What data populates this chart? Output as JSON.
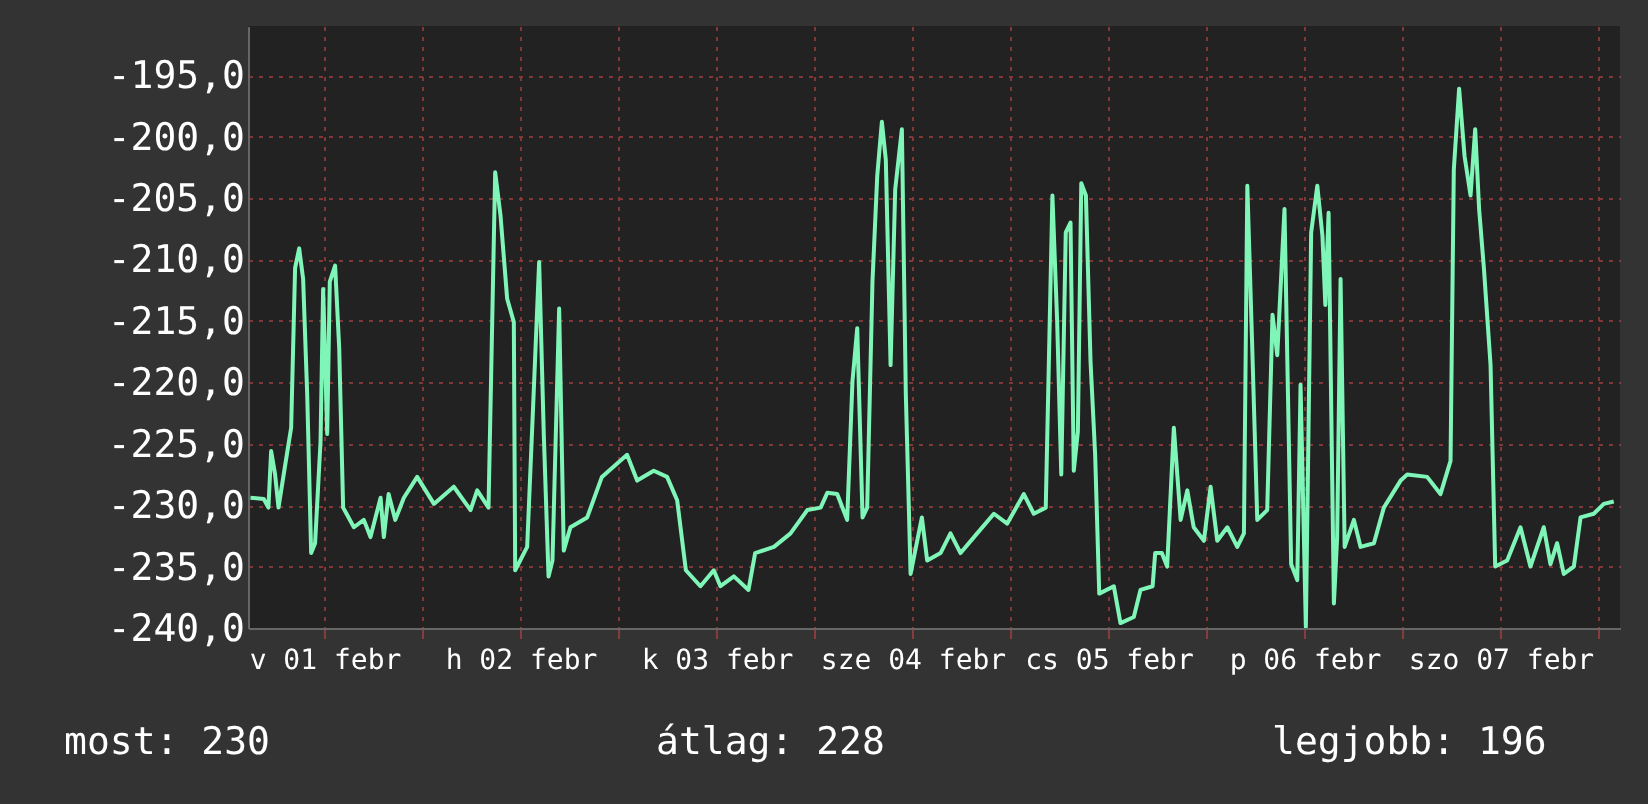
{
  "chart_data": {
    "type": "line",
    "x": [
      "--02-01T02:56",
      "--02-01T04:34",
      "--02-01T05:08",
      "--02-01T05:28",
      "--02-01T05:57",
      "--02-01T06:22",
      "--02-01T07:16",
      "--02-01T07:55",
      "--02-01T08:24",
      "--02-01T08:54",
      "--02-01T09:23",
      "--02-01T09:53",
      "--02-01T10:22",
      "--02-01T10:51",
      "--02-01T11:31",
      "--02-01T11:50",
      "--02-01T12:20",
      "--02-01T12:39",
      "--02-01T13:18",
      "--02-01T13:48",
      "--02-01T14:17",
      "--02-01T15:36",
      "--02-01T16:49",
      "--02-01T17:38",
      "--02-01T18:52",
      "--02-01T19:16",
      "--02-01T19:51",
      "--02-01T20:40",
      "--02-01T21:43",
      "--02-01T23:21",
      "--02-02T01:24",
      "--02-02T03:50",
      "--02-02T05:53",
      "--02-02T06:42",
      "--02-02T08:05",
      "--02-02T08:54",
      "--02-02T09:33",
      "--02-02T10:22",
      "--02-02T11:11",
      "--02-02T11:21",
      "--02-02T12:49",
      "--02-02T13:28",
      "--02-02T14:17",
      "--02-02T14:51",
      "--02-02T15:26",
      "--02-02T15:55",
      "--02-02T16:44",
      "--02-02T17:18",
      "--02-02T18:07",
      "--02-02T20:10",
      "--02-02T21:58",
      "--02-03T01:03",
      "--02-03T02:17",
      "--02-03T04:19",
      "--02-03T05:57",
      "--02-03T07:11",
      "--02-03T08:15",
      "--02-03T10:02",
      "--02-03T11:40",
      "--02-03T12:29",
      "--02-03T14:08",
      "--02-03T15:55",
      "--02-03T16:44",
      "--02-03T19:02",
      "--02-03T21:04",
      "--02-03T23:07",
      "--02-04T00:45",
      "--02-04T01:34",
      "--02-04T02:47",
      "--02-04T04:00",
      "--02-04T04:39",
      "--02-04T05:14",
      "--02-04T05:53",
      "--02-04T06:27",
      "--02-04T07:06",
      "--02-04T07:41",
      "--02-04T08:15",
      "--02-04T08:44",
      "--02-04T09:19",
      "--02-04T09:53",
      "--02-04T10:42",
      "--02-04T11:11",
      "--02-04T11:46",
      "--02-04T13:09",
      "--02-04T13:48",
      "--02-04T15:26",
      "--02-04T16:39",
      "--02-04T17:53",
      "--02-04T19:55",
      "--02-04T21:58",
      "--02-04T23:36",
      "--02-05T01:38",
      "--02-05T02:51",
      "--02-05T04:19",
      "--02-05T05:08",
      "--02-05T05:43",
      "--02-05T06:13",
      "--02-05T06:46",
      "--02-05T07:21",
      "--02-05T07:45",
      "--02-05T08:15",
      "--02-05T08:40",
      "--02-05T09:14",
      "--02-05T09:48",
      "--02-05T10:22",
      "--02-05T10:52",
      "--02-05T12:39",
      "--02-05T13:28",
      "--02-05T15:06",
      "--02-05T15:55",
      "--02-05T17:24",
      "--02-05T17:43",
      "--02-05T18:32",
      "--02-05T19:11",
      "--02-05T20:00",
      "--02-05T20:50",
      "--02-05T21:39",
      "--02-05T22:26",
      "--02-05T23:41",
      "--02-06T00:30",
      "--02-06T01:19",
      "--02-06T02:33",
      "--02-06T03:46",
      "--02-06T04:35",
      "--02-06T05:00",
      "--02-06T05:34",
      "--02-06T06:13",
      "--02-06T07:26",
      "--02-06T08:05",
      "--02-06T08:40",
      "--02-06T09:33",
      "--02-06T10:22",
      "--02-06T11:07",
      "--02-06T11:31",
      "--02-06T12:10",
      "--02-06T12:49",
      "--02-06T13:34",
      "--02-06T14:12",
      "--02-06T14:33",
      "--02-06T14:57",
      "--02-06T15:36",
      "--02-06T16:00",
      "--02-06T16:25",
      "--02-06T16:55",
      "--02-06T18:03",
      "--02-06T18:52",
      "--02-06T20:30",
      "--02-06T21:43",
      "--02-06T23:46",
      "--02-07T00:35",
      "--02-07T03:01",
      "--02-07T04:39",
      "--02-07T05:53",
      "--02-07T06:17",
      "--02-07T06:56",
      "--02-07T07:36",
      "--02-07T08:20",
      "--02-07T08:54",
      "--02-07T09:23",
      "--02-07T09:58",
      "--02-07T10:47",
      "--02-07T11:21",
      "--02-07T12:49",
      "--02-07T14:27",
      "--02-07T15:40",
      "--02-07T17:18",
      "--02-07T18:07",
      "--02-07T18:56",
      "--02-07T19:45",
      "--02-07T20:59",
      "--02-07T21:48",
      "--02-07T23:25",
      "--02-08T00:39",
      "--02-08T01:52"
    ],
    "series": [
      {
        "color": "#80f5b8",
        "values": [
          -229.4,
          -229.5,
          -230.2,
          -225.6,
          -227.5,
          -230.2,
          -226.4,
          -223.7,
          -210.7,
          -209.1,
          -211.6,
          -221.0,
          -233.9,
          -233.1,
          -224.8,
          -212.4,
          -224.2,
          -211.8,
          -210.5,
          -217.2,
          -230.2,
          -231.8,
          -231.2,
          -232.6,
          -229.4,
          -232.6,
          -229.1,
          -231.2,
          -229.4,
          -227.7,
          -229.9,
          -228.5,
          -230.4,
          -228.8,
          -230.2,
          -202.9,
          -206.4,
          -213.2,
          -215.1,
          -235.3,
          -233.4,
          -223.2,
          -210.2,
          -224.2,
          -235.8,
          -234.5,
          -214.0,
          -233.7,
          -231.8,
          -231.0,
          -227.7,
          -225.9,
          -228.0,
          -227.2,
          -227.7,
          -229.6,
          -235.3,
          -236.6,
          -235.3,
          -236.6,
          -235.8,
          -236.9,
          -233.9,
          -233.4,
          -232.3,
          -230.4,
          -230.2,
          -229.0,
          -229.1,
          -231.2,
          -219.9,
          -215.6,
          -231.0,
          -230.2,
          -211.8,
          -203.2,
          -198.8,
          -201.9,
          -218.6,
          -204.3,
          -199.4,
          -221.0,
          -235.6,
          -231.0,
          -234.5,
          -233.9,
          -232.3,
          -233.9,
          -232.3,
          -230.7,
          -231.5,
          -229.1,
          -230.7,
          -230.2,
          -204.8,
          -215.1,
          -227.5,
          -207.8,
          -207.0,
          -227.2,
          -224.0,
          -203.8,
          -204.8,
          -218.3,
          -225.9,
          -237.2,
          -236.6,
          -239.6,
          -239.1,
          -236.9,
          -236.6,
          -233.9,
          -233.9,
          -235.0,
          -223.7,
          -231.2,
          -228.8,
          -231.8,
          -232.9,
          -228.5,
          -232.9,
          -231.8,
          -233.4,
          -232.3,
          -204.0,
          -216.4,
          -231.2,
          -230.4,
          -214.5,
          -217.8,
          -205.9,
          -234.8,
          -236.1,
          -220.2,
          -239.9,
          -207.8,
          -204.0,
          -208.1,
          -213.7,
          -206.2,
          -238.0,
          -232.6,
          -211.6,
          -233.4,
          -231.2,
          -233.4,
          -233.1,
          -230.2,
          -228.0,
          -227.5,
          -227.7,
          -229.1,
          -226.4,
          -202.7,
          -196.1,
          -201.6,
          -204.8,
          -199.4,
          -205.9,
          -210.7,
          -218.6,
          -235.0,
          -234.5,
          -231.8,
          -235.0,
          -231.8,
          -234.8,
          -233.1,
          -235.6,
          -235.0,
          -231.0,
          -230.7,
          -229.9,
          -229.7
        ]
      }
    ],
    "xlim": [
      "--02-01T02:38",
      "--02-08T02:38"
    ],
    "xticks": [
      {
        "value": "--02-01T12:00",
        "label": "v 01 febr"
      },
      {
        "value": "--02-02T00:00",
        "label": null
      },
      {
        "value": "--02-02T12:00",
        "label": "h 02 febr"
      },
      {
        "value": "--02-03T00:00",
        "label": null
      },
      {
        "value": "--02-03T12:00",
        "label": "k 03 febr"
      },
      {
        "value": "--02-04T00:00",
        "label": null
      },
      {
        "value": "--02-04T12:00",
        "label": "sze 04 febr"
      },
      {
        "value": "--02-05T00:00",
        "label": null
      },
      {
        "value": "--02-05T12:00",
        "label": "cs 05 febr"
      },
      {
        "value": "--02-06T00:00",
        "label": null
      },
      {
        "value": "--02-06T12:00",
        "label": "p 06 febr"
      },
      {
        "value": "--02-07T00:00",
        "label": null
      },
      {
        "value": "--02-07T12:00",
        "label": "szo 07 febr"
      },
      {
        "value": "--02-08T00:00",
        "label": null
      }
    ],
    "ylim": [
      -240,
      -191
    ],
    "yticks": [
      {
        "value": -240,
        "label": "-240,0"
      },
      {
        "value": -235,
        "label": "-235,0"
      },
      {
        "value": -230,
        "label": "-230,0"
      },
      {
        "value": -225,
        "label": "-225,0"
      },
      {
        "value": -220,
        "label": "-220,0"
      },
      {
        "value": -215,
        "label": "-215,0"
      },
      {
        "value": -210,
        "label": "-210,0"
      },
      {
        "value": -205,
        "label": "-205,0"
      },
      {
        "value": -200,
        "label": "-200,0"
      },
      {
        "value": -195,
        "label": "-195,0"
      }
    ],
    "grid": true,
    "annotations": [
      "most: 230",
      "átlag: 228",
      "legjobb: 196"
    ]
  }
}
